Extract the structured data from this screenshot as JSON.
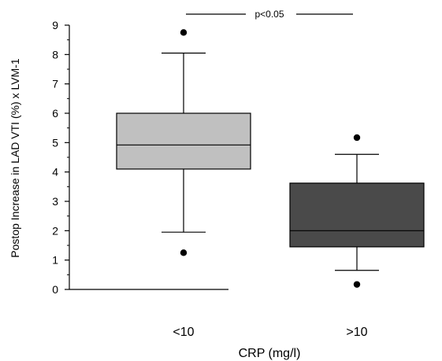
{
  "chart_data": {
    "type": "box",
    "xlabel": "CRP (mg/l)",
    "ylabel": "Postop Increase in LAD  VTI (%) x LVM-1",
    "ylim": [
      0,
      9
    ],
    "yticks": [
      "0",
      "1",
      "2",
      "3",
      "4",
      "5",
      "6",
      "7",
      "8",
      "9"
    ],
    "categories": [
      "<10",
      ">10"
    ],
    "series": [
      {
        "category": "<10",
        "whisker_low": 1.95,
        "q1": 4.1,
        "median": 4.92,
        "q3": 6.0,
        "whisker_high": 8.05,
        "outliers": [
          8.75,
          1.25
        ],
        "fill": "#c0c0c0"
      },
      {
        "category": ">10",
        "whisker_low": 0.65,
        "q1": 1.45,
        "median": 2.0,
        "q3": 3.62,
        "whisker_high": 4.6,
        "outliers": [
          5.17,
          0.17
        ],
        "fill": "#4a4a4a"
      }
    ],
    "annotation": "p<0.05"
  }
}
